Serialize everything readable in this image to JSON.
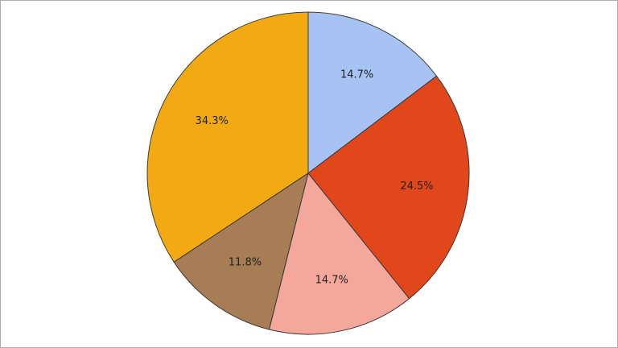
{
  "chart_data": {
    "type": "pie",
    "values": [
      14.7,
      24.5,
      14.7,
      11.8,
      34.3
    ],
    "value_labels": [
      "14.7%",
      "24.5%",
      "14.7%",
      "11.8%",
      "34.3%"
    ],
    "colors": [
      "#a6c3f4",
      "#e1471a",
      "#f4a79b",
      "#a67d55",
      "#f3a911"
    ]
  }
}
